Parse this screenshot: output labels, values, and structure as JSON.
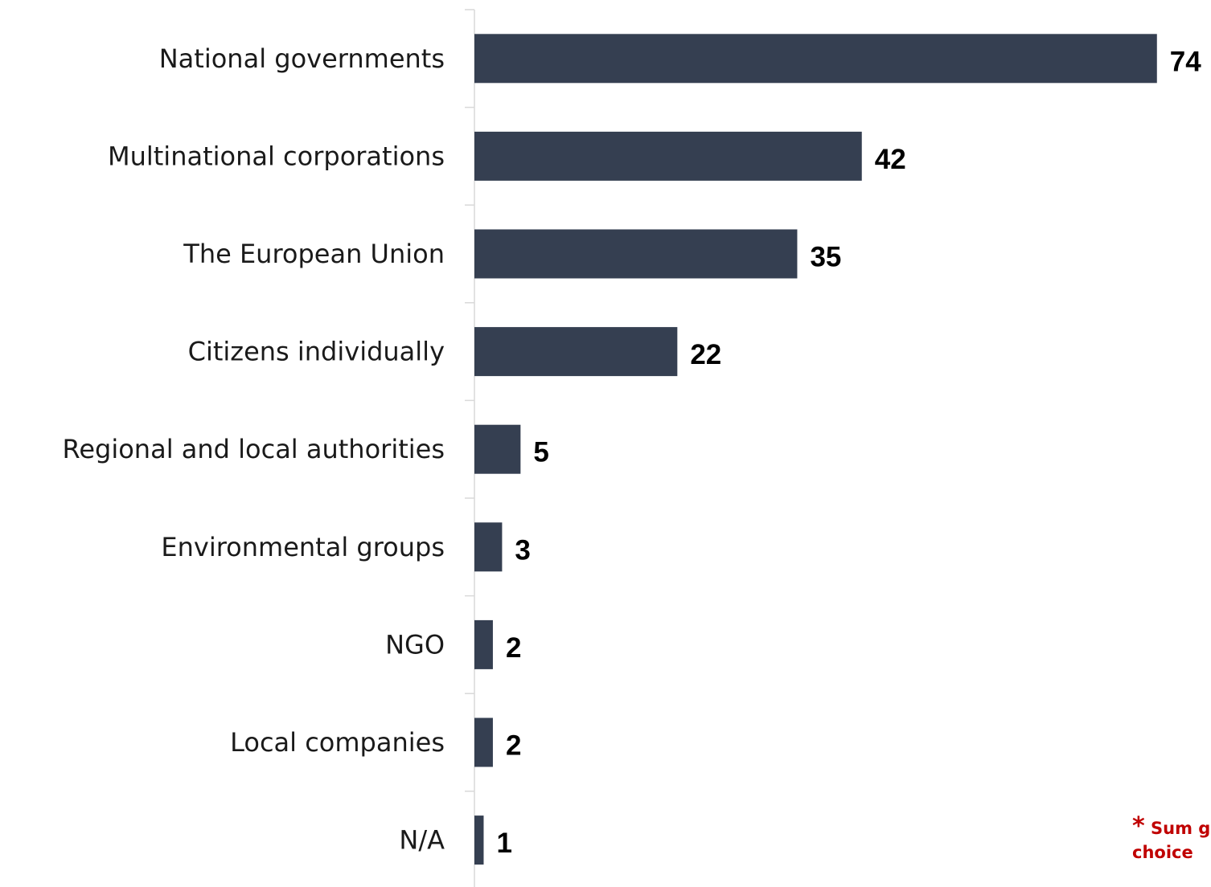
{
  "chart_data": {
    "type": "bar",
    "orientation": "horizontal",
    "title": "",
    "xlabel": "",
    "ylabel": "",
    "categories": [
      "National governments",
      "Multinational corporations",
      "The European Union",
      "Citizens individually",
      "Regional and local authorities",
      "Environmental groups",
      "NGO",
      "Local companies",
      "N/A"
    ],
    "values": [
      74,
      42,
      35,
      22,
      5,
      3,
      2,
      2,
      1
    ],
    "value_labels": [
      "74",
      "42",
      "35",
      "22",
      "5",
      "3",
      "2",
      "2",
      "1"
    ],
    "xlim": [
      0,
      74
    ],
    "grid": false,
    "legend": "none",
    "colors": {
      "bar": "#353f51",
      "axis": "#d9d9d9",
      "note": "#c00000"
    },
    "note": {
      "star": "*",
      "line1": "Sum g",
      "line2": "choice"
    }
  }
}
